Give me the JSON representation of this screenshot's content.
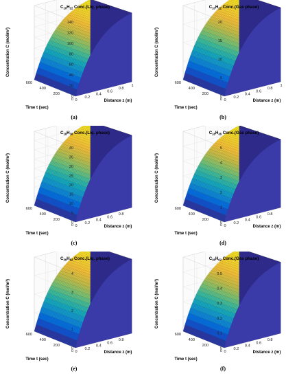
{
  "chart_data": [
    {
      "type": "surface",
      "panel_label": "(a)",
      "title_prefix": "C",
      "subscript_1": "10",
      "subscript_mid": "H",
      "subscript_2": "22",
      "title_suffix": " Conc.(Liq. phase)",
      "xlabel": "Distance z (m)",
      "ylabel": "Time t (sec)",
      "zlabel": "Concentration C (mol/m³)",
      "xlim": [
        0,
        1
      ],
      "ylim": [
        0,
        600
      ],
      "zlim": [
        0,
        140
      ],
      "x_ticks": [
        "0",
        "0.2",
        "0.4",
        "0.6",
        "0.8",
        "1"
      ],
      "y_ticks": [
        "0",
        "200",
        "400",
        "600"
      ],
      "z_ticks": [
        "0",
        "20",
        "40",
        "60",
        "80",
        "100",
        "120",
        "140"
      ],
      "z_max": 130
    },
    {
      "type": "surface",
      "panel_label": "(b)",
      "title_prefix": "C",
      "subscript_1": "10",
      "subscript_mid": "H",
      "subscript_2": "22",
      "title_suffix": " Conc.(Gas phase)",
      "xlabel": "Distance z (m)",
      "ylabel": "Time t (sec)",
      "zlabel": "Concentration C (mol/m³)",
      "xlim": [
        0,
        1
      ],
      "ylim": [
        0,
        600
      ],
      "zlim": [
        0,
        20
      ],
      "x_ticks": [
        "0",
        "0.2",
        "0.4",
        "0.6",
        "0.8",
        "1"
      ],
      "y_ticks": [
        "0",
        "200",
        "400",
        "600"
      ],
      "z_ticks": [
        "0",
        "5",
        "10",
        "15",
        "20"
      ],
      "z_max": 20
    },
    {
      "type": "surface",
      "panel_label": "(c)",
      "title_prefix": "C",
      "subscript_1": "18",
      "subscript_mid": "H",
      "subscript_2": "38",
      "title_suffix": " Conc.(Liq. phase)",
      "xlabel": "Distance z (m)",
      "ylabel": "Time t (sec)",
      "zlabel": "Concentration C (mol/m³)",
      "xlim": [
        0,
        1
      ],
      "ylim": [
        0,
        600
      ],
      "zlim": [
        0,
        40
      ],
      "x_ticks": [
        "0",
        "0.2",
        "0.4",
        "0.6",
        "0.8"
      ],
      "y_ticks": [
        "0",
        "200",
        "400",
        "600"
      ],
      "z_ticks": [
        "0",
        "5",
        "10",
        "15",
        "20",
        "25",
        "30",
        "35",
        "40"
      ],
      "z_max": 39
    },
    {
      "type": "surface",
      "panel_label": "(d)",
      "title_prefix": "C",
      "subscript_1": "18",
      "subscript_mid": "H",
      "subscript_2": "38",
      "title_suffix": " Conc.(Gas phase)",
      "xlabel": "Distance z (m)",
      "ylabel": "Time t (sec)",
      "zlabel": "Concentration C (mol/m³)",
      "xlim": [
        0,
        1
      ],
      "ylim": [
        0,
        600
      ],
      "zlim": [
        0,
        5
      ],
      "x_ticks": [
        "0",
        "0.2",
        "0.4",
        "0.6",
        "0.8"
      ],
      "y_ticks": [
        "0",
        "200",
        "400",
        "600"
      ],
      "z_ticks": [
        "0",
        "1",
        "2",
        "3",
        "4",
        "5"
      ],
      "z_max": 4.6
    },
    {
      "type": "surface",
      "panel_label": "(e)",
      "title_prefix": "C",
      "subscript_1": "36",
      "subscript_mid": "H",
      "subscript_2": "62",
      "title_suffix": " Conc.(Liq. phase)",
      "xlabel": "Distance z (m)",
      "ylabel": "Time t (sec)",
      "zlabel": "Concentration C (mol/m³)",
      "xlim": [
        0,
        1
      ],
      "ylim": [
        0,
        600
      ],
      "zlim": [
        0,
        4
      ],
      "x_ticks": [
        "0",
        "0.2",
        "0.4",
        "0.6",
        "0.8"
      ],
      "y_ticks": [
        "0",
        "200",
        "400",
        "600"
      ],
      "z_ticks": [
        "0",
        "1",
        "2",
        "3",
        "4"
      ],
      "z_max": 4
    },
    {
      "type": "surface",
      "panel_label": "(f)",
      "title_prefix": "C",
      "subscript_1": "36",
      "subscript_mid": "H",
      "subscript_2": "62",
      "title_suffix": " Conc.(Gas phase)",
      "xlabel": "Distance z (m)",
      "ylabel": "Time t (sec)",
      "zlabel": "Concentration C (mol/m³)",
      "xlim": [
        0,
        1
      ],
      "ylim": [
        0,
        600
      ],
      "zlim": [
        0,
        0.5
      ],
      "x_ticks": [
        "0",
        "0.2",
        "0.4",
        "0.6",
        "0.8"
      ],
      "y_ticks": [
        "0",
        "200",
        "400",
        "600"
      ],
      "z_ticks": [
        "0",
        "0.1",
        "0.2",
        "0.3",
        "0.4",
        "0.5"
      ],
      "z_max": 0.48
    }
  ]
}
